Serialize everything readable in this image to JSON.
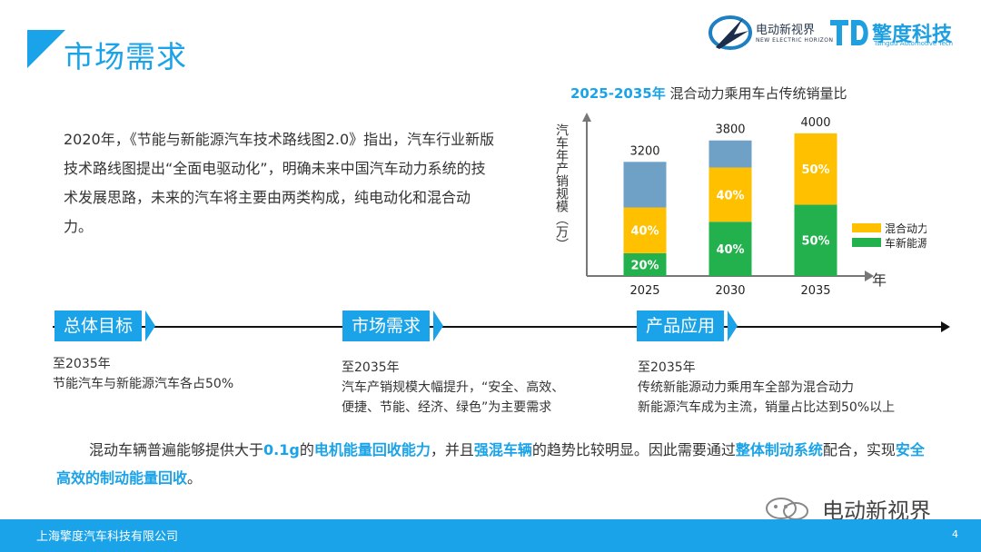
{
  "title": "市场需求",
  "logos": {
    "logo1_name": "电动新视界",
    "logo1_sub": "NEW ELECTRIC HORIZON",
    "logo2_name": "擎度科技",
    "logo2_sub": "Tsingdu Automotive Tech"
  },
  "intro": "2020年，《节能与新能源汽车技术路线图2.0》指出，汽车行业新版技术路线图提出“全面电驱动化”，明确未来中国汽车动力系统的技术发展思路，未来的汽车将主要由两类构成，纯电动化和混合动力。",
  "chart_title": {
    "years": "2025-2035年",
    "text": "混合动力乘用车占传统销量比"
  },
  "chart_data": {
    "type": "bar",
    "stacked": true,
    "categories": [
      "2025",
      "2030",
      "2035"
    ],
    "totals": [
      3200,
      3800,
      4000
    ],
    "ylabel": "汽车年产销规模（万）",
    "xlabel": "年",
    "ylim": [
      0,
      4200
    ],
    "series": [
      {
        "name": "车新能源汽车",
        "color": "#22b14c",
        "values": [
          640,
          1520,
          2000
        ],
        "labels": [
          "20%",
          "40%",
          "50%"
        ]
      },
      {
        "name": "混合动力乘用",
        "color": "#ffc000",
        "values": [
          1280,
          1520,
          2000
        ],
        "labels": [
          "40%",
          "40%",
          "50%"
        ]
      },
      {
        "name": "",
        "color": "#6fa1c7",
        "values": [
          1280,
          760,
          0
        ],
        "labels": [
          "",
          "",
          ""
        ]
      }
    ],
    "legend": [
      "混合动力乘用",
      "车新能源汽车"
    ],
    "legend_position": "right"
  },
  "timeline": [
    {
      "label": "总体目标",
      "year": "至2035年",
      "lines": [
        "节能汽车与新能源汽车各占50%"
      ]
    },
    {
      "label": "市场需求",
      "year": "至2035年",
      "lines": [
        "汽车产销规模大幅提升，“安全、高效、",
        "便捷、节能、经济、绿色”为主要需求"
      ]
    },
    {
      "label": "产品应用",
      "year": "至2035年",
      "lines": [
        "传统新能源动力乘用车全部为混合动力",
        "新能源汽车成为主流，销量占比达到50%以上"
      ]
    }
  ],
  "bottom": {
    "p1": "混动车辆普遍能够提供大于",
    "h1": "0.1g",
    "p2": "的",
    "h2": "电机能量回收能力",
    "p3": "，并且",
    "h3": "强混车辆",
    "p4": "的趋势比较明显。因此需要通过",
    "h4": "整体制动系统",
    "p5": "配合，实现",
    "h5": "安全高效的制动能量回收",
    "p6": "。"
  },
  "footer": {
    "company": "上海擎度汽车科技有限公司",
    "page": "4"
  },
  "watermark": "电动新视界",
  "colors": {
    "accent": "#1aa3e8",
    "green": "#22b14c",
    "yellow": "#ffc000",
    "steel": "#6fa1c7"
  }
}
